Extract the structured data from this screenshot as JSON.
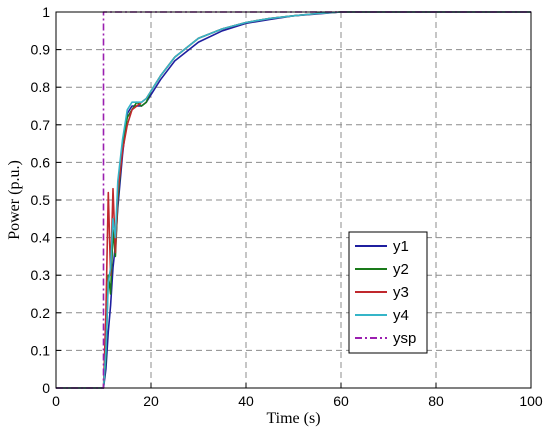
{
  "chart_data": {
    "type": "line",
    "xlabel": "Time (s)",
    "ylabel": "Power (p.u.)",
    "xlim": [
      0,
      100
    ],
    "ylim": [
      0,
      1
    ],
    "xticks": [
      0,
      20,
      40,
      60,
      80,
      100
    ],
    "yticks": [
      0,
      0.1,
      0.2,
      0.3,
      0.4,
      0.5,
      0.6,
      0.7,
      0.8,
      0.9,
      1
    ],
    "grid": true,
    "legend_position": "bottom-right",
    "series": [
      {
        "name": "y1",
        "color": "#1f1f9f",
        "dash": "solid",
        "x": [
          0,
          10,
          10.5,
          11,
          11.5,
          12,
          12.5,
          13,
          14,
          15,
          16,
          17,
          18,
          19,
          20,
          22,
          25,
          30,
          35,
          40,
          45,
          50,
          55,
          60,
          70,
          80,
          90,
          100
        ],
        "y": [
          0,
          0,
          0.05,
          0.15,
          0.22,
          0.32,
          0.38,
          0.48,
          0.62,
          0.73,
          0.75,
          0.75,
          0.75,
          0.76,
          0.78,
          0.82,
          0.87,
          0.92,
          0.95,
          0.97,
          0.98,
          0.99,
          0.995,
          1,
          1,
          1,
          1,
          1
        ]
      },
      {
        "name": "y2",
        "color": "#1a7a1a",
        "dash": "solid",
        "x": [
          0,
          10,
          10.5,
          11,
          11.5,
          12,
          12.5,
          13,
          14,
          15,
          16,
          17,
          18,
          19,
          20,
          22,
          25,
          30,
          35,
          40,
          45,
          50,
          55,
          60,
          70,
          80,
          90,
          100
        ],
        "y": [
          0,
          0,
          0.08,
          0.3,
          0.25,
          0.42,
          0.35,
          0.5,
          0.64,
          0.72,
          0.74,
          0.76,
          0.75,
          0.76,
          0.79,
          0.83,
          0.88,
          0.93,
          0.955,
          0.972,
          0.983,
          0.99,
          0.996,
          1,
          1,
          1,
          1,
          1
        ]
      },
      {
        "name": "y3",
        "color": "#c0282d",
        "dash": "solid",
        "x": [
          0,
          10,
          10.5,
          11,
          11.5,
          12,
          12.5,
          13,
          14,
          15,
          16,
          17,
          18,
          19,
          20,
          22,
          25,
          30,
          35,
          40,
          45,
          50,
          55,
          60,
          70,
          80,
          90,
          100
        ],
        "y": [
          0,
          0,
          0.2,
          0.52,
          0.3,
          0.53,
          0.36,
          0.52,
          0.63,
          0.7,
          0.74,
          0.75,
          0.76,
          0.77,
          0.79,
          0.83,
          0.88,
          0.93,
          0.955,
          0.972,
          0.983,
          0.99,
          0.996,
          1,
          1,
          1,
          1,
          1
        ]
      },
      {
        "name": "y4",
        "color": "#35b5c8",
        "dash": "solid",
        "x": [
          0,
          10,
          10.5,
          11,
          11.5,
          12,
          12.5,
          13,
          14,
          15,
          16,
          17,
          18,
          19,
          20,
          22,
          25,
          30,
          35,
          40,
          45,
          50,
          55,
          60,
          70,
          80,
          90,
          100
        ],
        "y": [
          0,
          0,
          0.1,
          0.28,
          0.32,
          0.45,
          0.4,
          0.55,
          0.66,
          0.74,
          0.76,
          0.76,
          0.76,
          0.77,
          0.79,
          0.83,
          0.88,
          0.93,
          0.955,
          0.972,
          0.983,
          0.99,
          0.996,
          1,
          1,
          1,
          1,
          1
        ]
      },
      {
        "name": "ysp",
        "color": "#9b1fb0",
        "dash": "dashdot",
        "x": [
          0,
          10,
          10,
          100
        ],
        "y": [
          0,
          0,
          1,
          1
        ]
      }
    ]
  }
}
